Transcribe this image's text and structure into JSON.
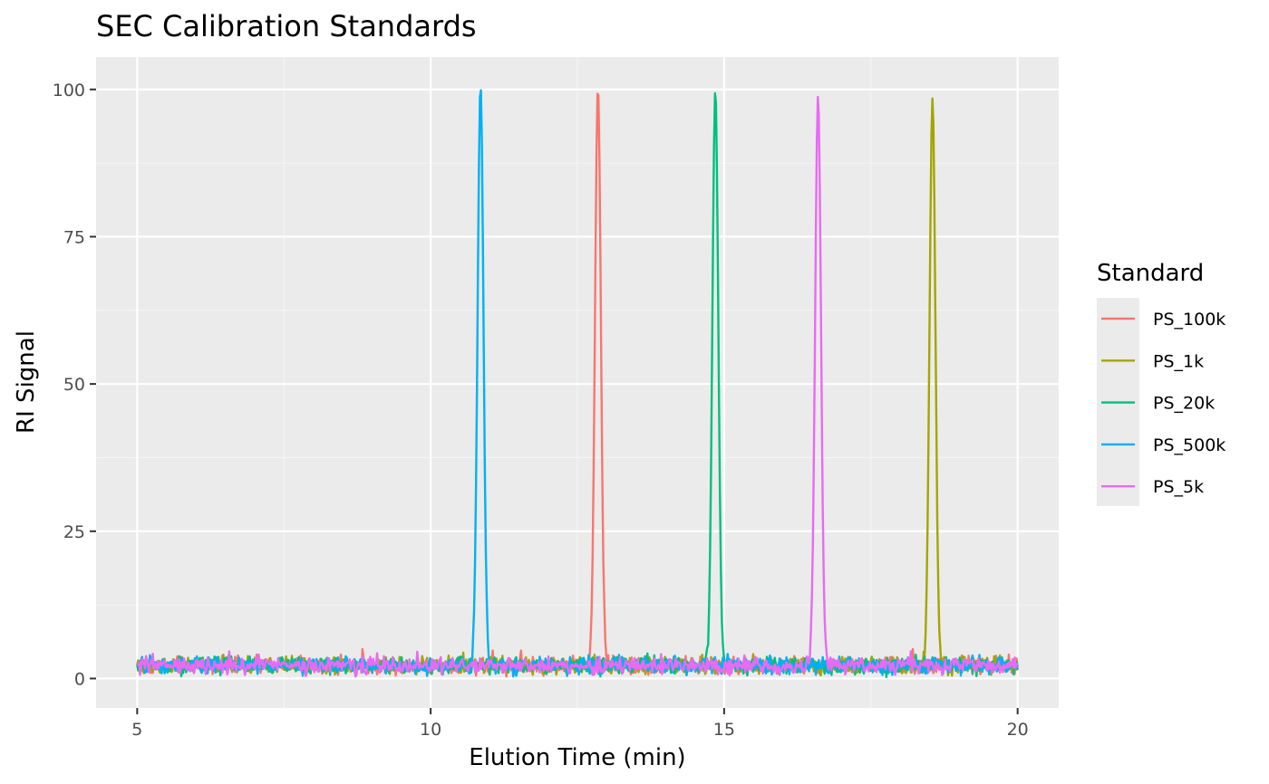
{
  "chart_data": {
    "type": "line",
    "title": "SEC Calibration Standards",
    "xlabel": "Elution Time (min)",
    "ylabel": "RI Signal",
    "xlim": [
      4.3,
      20.7
    ],
    "ylim": [
      -5,
      105.5
    ],
    "x_ticks": [
      5,
      10,
      15,
      20
    ],
    "x_tick_labels": [
      "5",
      "10",
      "15",
      "20"
    ],
    "y_ticks": [
      0,
      25,
      50,
      75,
      100
    ],
    "y_tick_labels": [
      "0",
      "25",
      "50",
      "75",
      "100"
    ],
    "grid": true,
    "legend": {
      "title": "Standard",
      "position": "right"
    },
    "x_range": [
      5,
      20
    ],
    "baseline": {
      "mean": 2.2,
      "noise_range": [
        0,
        5
      ]
    },
    "peak_width_min": 0.05,
    "series": [
      {
        "name": "PS_100k",
        "color": "#F8766D",
        "peak_time": 12.85,
        "peak_height": 100.5
      },
      {
        "name": "PS_1k",
        "color": "#A3A500",
        "peak_time": 18.55,
        "peak_height": 98.5
      },
      {
        "name": "PS_20k",
        "color": "#00BF7D",
        "peak_time": 14.85,
        "peak_height": 100.0
      },
      {
        "name": "PS_500k",
        "color": "#00B0F6",
        "peak_time": 10.85,
        "peak_height": 100.7
      },
      {
        "name": "PS_5k",
        "color": "#E76BF3",
        "peak_time": 16.6,
        "peak_height": 99.0
      }
    ]
  },
  "colors": {
    "panel_bg": "#EBEBEB",
    "grid_major": "#FFFFFF",
    "grid_minor": "#F5F5F5"
  }
}
